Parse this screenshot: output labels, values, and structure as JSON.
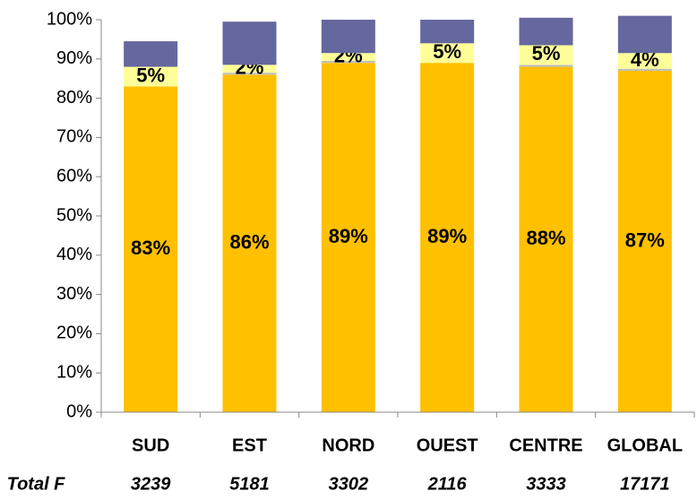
{
  "chart_data": {
    "type": "stacked_bar",
    "categories": [
      "SUD",
      "EST",
      "NORD",
      "OUEST",
      "CENTRE",
      "GLOBAL"
    ],
    "series": [
      {
        "color": "#FFC000",
        "values": [
          83,
          86,
          89,
          89,
          88,
          87
        ],
        "value_labels": [
          "83%",
          "86%",
          "89%",
          "89%",
          "88%",
          "87%"
        ]
      },
      {
        "color": "#BFBFBF",
        "values": [
          0,
          0.5,
          0.5,
          0,
          0.5,
          0.5
        ]
      },
      {
        "color": "#FFFF99",
        "values": [
          5,
          2,
          2,
          5,
          5,
          4
        ],
        "value_labels": [
          "5%",
          "2%",
          "2%",
          "5%",
          "5%",
          "4%"
        ]
      },
      {
        "color": "#65679F",
        "values": [
          6.5,
          11,
          8.5,
          6,
          7,
          9.5
        ]
      }
    ],
    "ylim": [
      0,
      100
    ],
    "yticks": [
      {
        "value": 0,
        "label": "0%"
      },
      {
        "value": 10,
        "label": "10%"
      },
      {
        "value": 20,
        "label": "20%"
      },
      {
        "value": 30,
        "label": "30%"
      },
      {
        "value": 40,
        "label": "40%"
      },
      {
        "value": 50,
        "label": "50%"
      },
      {
        "value": 60,
        "label": "60%"
      },
      {
        "value": 70,
        "label": "70%"
      },
      {
        "value": 80,
        "label": "80%"
      },
      {
        "value": 90,
        "label": "90%"
      },
      {
        "value": 100,
        "label": "100%"
      }
    ],
    "totals": {
      "label": "Total F",
      "values": [
        3239,
        5181,
        3302,
        2116,
        3333,
        17171
      ]
    }
  }
}
